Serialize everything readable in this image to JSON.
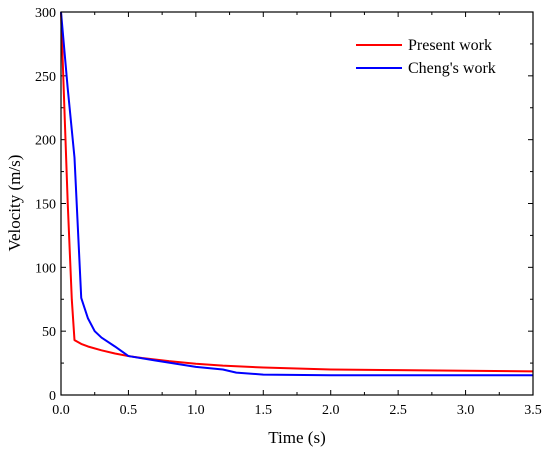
{
  "chart_data": {
    "type": "line",
    "title": "",
    "xlabel": "Time (s)",
    "ylabel": "Velocity (m/s)",
    "xlim": [
      0,
      3.5
    ],
    "ylim": [
      0,
      300
    ],
    "xticks": [
      "0.0",
      "0.5",
      "1.0",
      "1.5",
      "2.0",
      "2.5",
      "3.0",
      "3.5"
    ],
    "yticks": [
      "0",
      "50",
      "100",
      "150",
      "200",
      "250",
      "300"
    ],
    "grid": false,
    "legend_position": "top-right",
    "series": [
      {
        "name": "Present work",
        "color": "#ff0000",
        "x": [
          0,
          0.05,
          0.08,
          0.1,
          0.15,
          0.2,
          0.3,
          0.4,
          0.5,
          0.6,
          0.8,
          1.0,
          1.2,
          1.5,
          2.0,
          2.5,
          3.0,
          3.5
        ],
        "y": [
          300,
          150,
          75,
          43,
          40,
          38,
          35,
          32.5,
          30.5,
          29,
          26.5,
          24.5,
          23,
          21.5,
          20,
          19.5,
          19,
          18.5
        ]
      },
      {
        "name": "Cheng's work",
        "color": "#0000ff",
        "x": [
          0,
          0.05,
          0.1,
          0.15,
          0.2,
          0.25,
          0.3,
          0.4,
          0.5,
          0.7,
          1.0,
          1.2,
          1.3,
          1.5,
          2.0,
          2.5,
          3.0,
          3.5
        ],
        "y": [
          300,
          240,
          186,
          76,
          60,
          50,
          45,
          38,
          30.5,
          27,
          22,
          20,
          17.5,
          16,
          15.5,
          15.5,
          15.5,
          15.5
        ]
      }
    ]
  }
}
